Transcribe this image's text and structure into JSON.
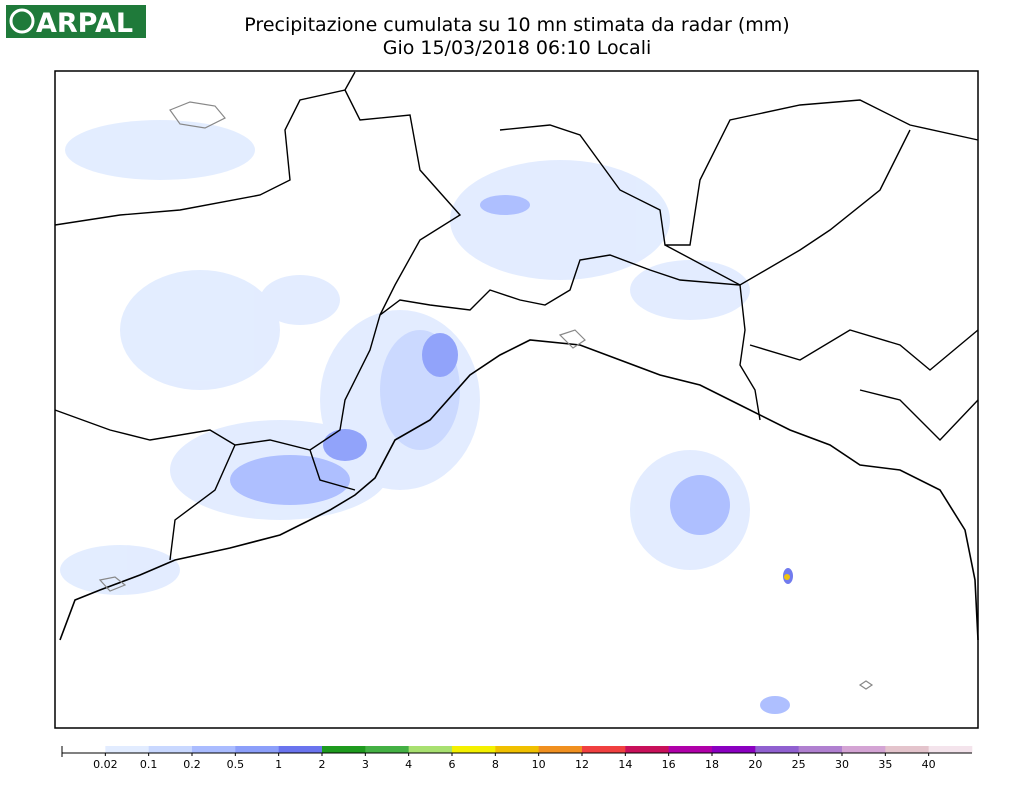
{
  "header": {
    "logo": "ARPAL",
    "title": "Precipitazione cumulata su 10 mn stimata da radar (mm)",
    "subtitle": "Gio 15/03/2018 06:10 Locali"
  },
  "legend": {
    "labels": [
      "0.02",
      "0.1",
      "0.2",
      "0.5",
      "1",
      "2",
      "3",
      "4",
      "6",
      "8",
      "10",
      "12",
      "14",
      "16",
      "18",
      "20",
      "25",
      "30",
      "35",
      "40"
    ],
    "colors": [
      "#ffffff",
      "#e2ecff",
      "#c9d8ff",
      "#aabcff",
      "#8c9ffa",
      "#6a74ee",
      "#1e9a1e",
      "#44b044",
      "#a8e070",
      "#f4f000",
      "#f0c000",
      "#f09020",
      "#f04040",
      "#c8105a",
      "#b000a8",
      "#8a00c0",
      "#9060d0",
      "#b080d0",
      "#d4a4d4",
      "#e4c4cc",
      "#f4e4ec"
    ]
  }
}
